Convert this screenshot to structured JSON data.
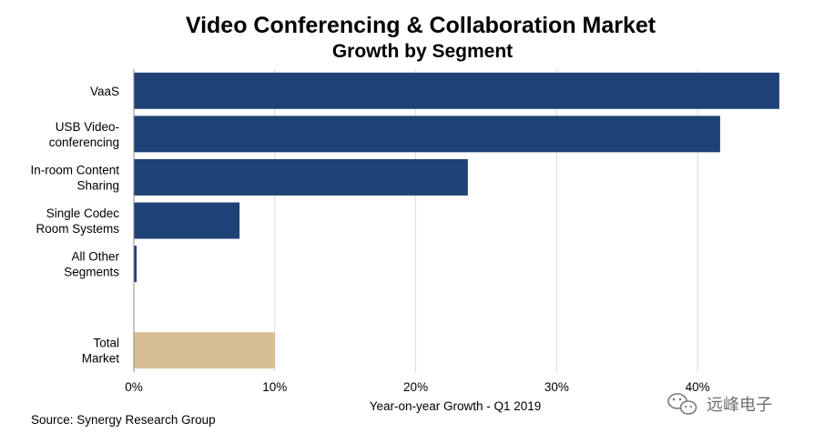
{
  "chart_data": {
    "type": "bar",
    "orientation": "horizontal",
    "title": "Video Conferencing & Collaboration  Market",
    "subtitle": "Growth by Segment",
    "xlabel": "Year-on-year  Growth - Q1 2019",
    "ylabel": "",
    "xlim": [
      0,
      46
    ],
    "xticks": [
      0,
      10,
      20,
      30,
      40
    ],
    "xtick_labels": [
      "0%",
      "10%",
      "20%",
      "30%",
      "40%"
    ],
    "grid": "vertical",
    "categories": [
      [
        "VaaS"
      ],
      [
        "USB Video-",
        "conferencing"
      ],
      [
        "In-room Content",
        "Sharing"
      ],
      [
        "Single Codec",
        "Room Systems"
      ],
      [
        "All Other",
        "Segments"
      ],
      [],
      [
        "Total",
        "Market"
      ]
    ],
    "values": [
      45.8,
      41.6,
      23.7,
      7.5,
      0.2,
      null,
      10.0
    ],
    "colors": [
      "#1f4276",
      "#1f4276",
      "#1f4276",
      "#1f4276",
      "#1f4276",
      null,
      "#d7bf93"
    ],
    "source": "Source: Synergy Research Group"
  },
  "watermark": {
    "text": "远峰电子",
    "icon": "wechat-logo-icon"
  }
}
